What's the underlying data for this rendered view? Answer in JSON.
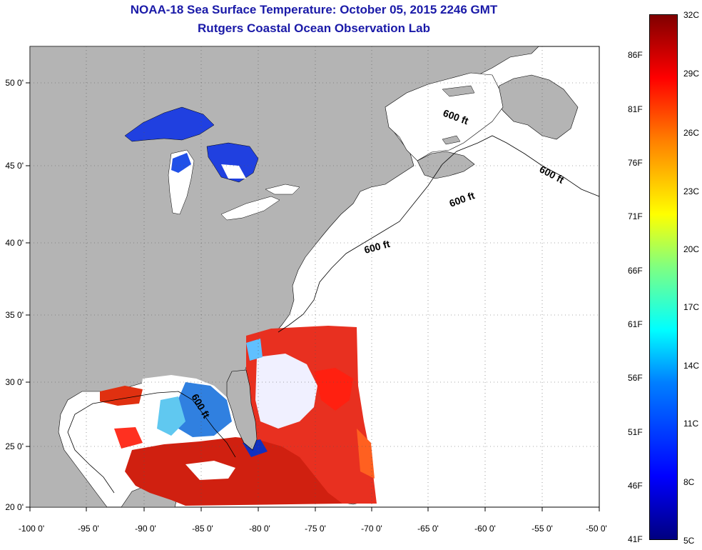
{
  "title": {
    "line1": "NOAA-18 Sea Surface Temperature:  October 05, 2015 2246 GMT",
    "line2": "Rutgers Coastal Ocean Observation Lab"
  },
  "axes": {
    "lon_ticks": [
      "-100 0'",
      "-95 0'",
      "-90 0'",
      "-85 0'",
      "-80 0'",
      "-75 0'",
      "-70 0'",
      "-65 0'",
      "-60 0'",
      "-55 0'",
      "-50 0'"
    ],
    "lat_ticks": [
      "50 0'",
      "45 0'",
      "40 0'",
      "35 0'",
      "30 0'",
      "25 0'",
      "20 0'"
    ]
  },
  "contour_labels": [
    "600 ft",
    "600 ft",
    "600 ft",
    "600 ft",
    "600 ft"
  ],
  "colorbar": {
    "celsius": [
      "32C",
      "29C",
      "26C",
      "23C",
      "20C",
      "17C",
      "14C",
      "11C",
      "8C",
      "5C"
    ],
    "fahrenheit": [
      "86F",
      "81F",
      "76F",
      "71F",
      "66F",
      "61F",
      "56F",
      "51F",
      "46F",
      "41F"
    ]
  },
  "colors": {
    "land": "#b4b4b4",
    "title": "#1a1aa8",
    "cold": "#0000ff",
    "warm": "#ff0000"
  }
}
